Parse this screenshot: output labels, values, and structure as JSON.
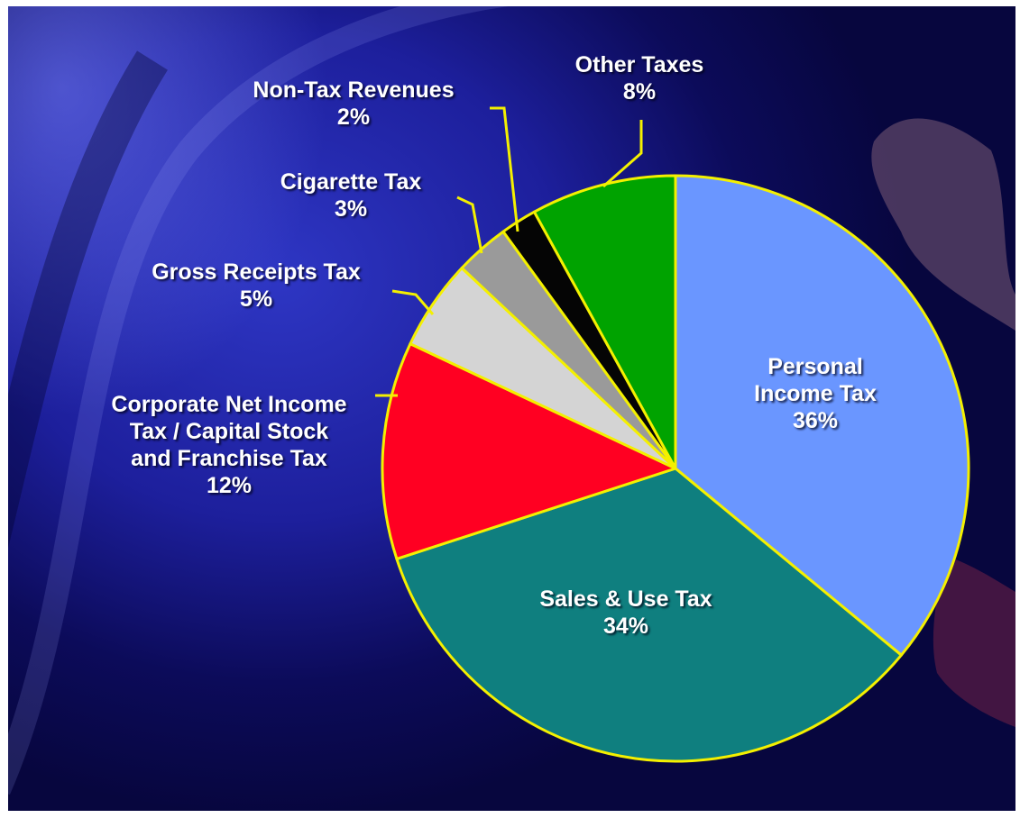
{
  "chart_data": {
    "type": "pie",
    "title": "",
    "slices": [
      {
        "name": "Personal Income Tax",
        "lines": [
          "Personal",
          "Income Tax"
        ],
        "value": 36,
        "value_label": "36%",
        "color": "#6a96ff"
      },
      {
        "name": "Sales & Use Tax",
        "lines": [
          "Sales & Use Tax"
        ],
        "value": 34,
        "value_label": "34%",
        "color": "#0f7f7f"
      },
      {
        "name": "Corporate Net Income Tax / Capital Stock and Franchise Tax",
        "lines": [
          "Corporate Net Income",
          "Tax / Capital Stock",
          "and Franchise Tax"
        ],
        "value": 12,
        "value_label": "12%",
        "color": "#ff0022"
      },
      {
        "name": "Gross Receipts Tax",
        "lines": [
          "Gross Receipts Tax"
        ],
        "value": 5,
        "value_label": "5%",
        "color": "#d4d4d4"
      },
      {
        "name": "Cigarette Tax",
        "lines": [
          "Cigarette Tax"
        ],
        "value": 3,
        "value_label": "3%",
        "color": "#9a9a9a"
      },
      {
        "name": "Non-Tax Revenues",
        "lines": [
          "Non-Tax Revenues"
        ],
        "value": 2,
        "value_label": "2%",
        "color": "#050505"
      },
      {
        "name": "Other Taxes",
        "lines": [
          "Other Taxes"
        ],
        "value": 8,
        "value_label": "8%",
        "color": "#00a300"
      }
    ],
    "start": "12 o'clock",
    "direction": "clockwise",
    "outline_color": "#f4f000",
    "label_color": "#ffffff"
  }
}
